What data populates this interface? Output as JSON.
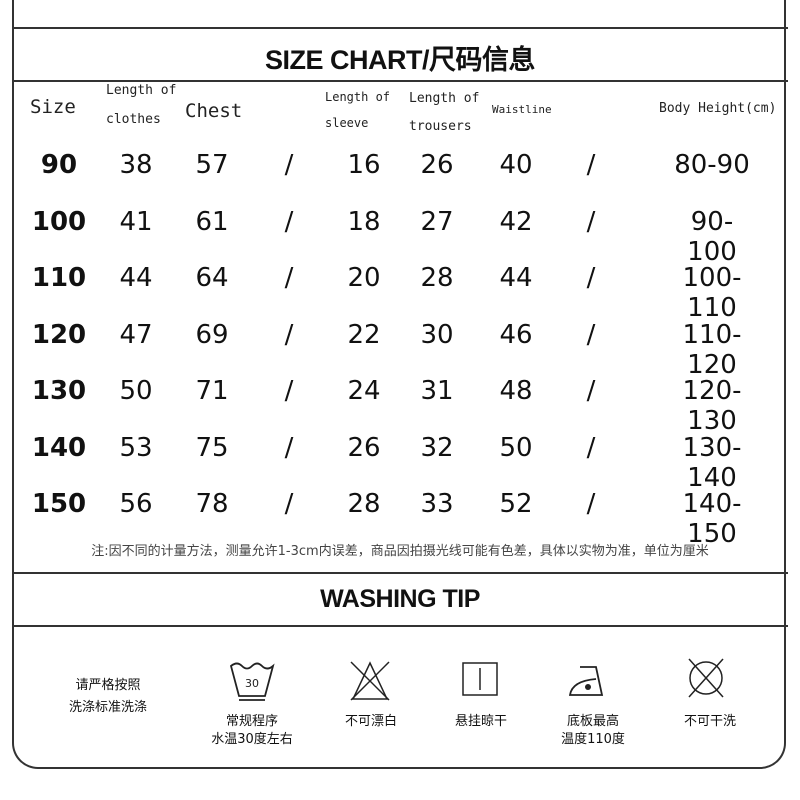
{
  "size_chart": {
    "title": "SIZE CHART/尺码信息",
    "headers": {
      "size": "Size",
      "clothes_1": "Length of",
      "clothes_2": "clothes",
      "chest": "Chest",
      "sleeve_1": "Length of",
      "sleeve_2": "sleeve",
      "trousers_1": "Length of",
      "trousers_2": "trousers",
      "waist": "Waistline",
      "height": "Body Height(cm)"
    },
    "rows": [
      [
        "90",
        "38",
        "57",
        "/",
        "16",
        "26",
        "40",
        "/",
        "80-90"
      ],
      [
        "100",
        "41",
        "61",
        "/",
        "18",
        "27",
        "42",
        "/",
        "90-100"
      ],
      [
        "110",
        "44",
        "64",
        "/",
        "20",
        "28",
        "44",
        "/",
        "100-110"
      ],
      [
        "120",
        "47",
        "69",
        "/",
        "22",
        "30",
        "46",
        "/",
        "110-120"
      ],
      [
        "130",
        "50",
        "71",
        "/",
        "24",
        "31",
        "48",
        "/",
        "120-130"
      ],
      [
        "140",
        "53",
        "75",
        "/",
        "26",
        "32",
        "50",
        "/",
        "130-140"
      ],
      [
        "150",
        "56",
        "78",
        "/",
        "28",
        "33",
        "52",
        "/",
        "140-150"
      ]
    ],
    "note": "注:因不同的计量方法，测量允许1-3cm内误差，商品因拍摄光线可能有色差，具体以实物为准，单位为厘米"
  },
  "washing": {
    "title": "WASHING TIP",
    "intro_1": "请严格按照",
    "intro_2": "洗涤标准洗涤",
    "items": [
      {
        "icon": "wash-30-icon",
        "label_1": "常规程序",
        "label_2": "水温30度左右",
        "temp": "30"
      },
      {
        "icon": "no-bleach-icon",
        "label_1": "不可漂白",
        "label_2": ""
      },
      {
        "icon": "hang-dry-icon",
        "label_1": "悬挂晾干",
        "label_2": ""
      },
      {
        "icon": "iron-icon",
        "label_1": "底板最高",
        "label_2": "温度110度"
      },
      {
        "icon": "no-dry-clean-icon",
        "label_1": "不可干洗",
        "label_2": ""
      }
    ]
  }
}
